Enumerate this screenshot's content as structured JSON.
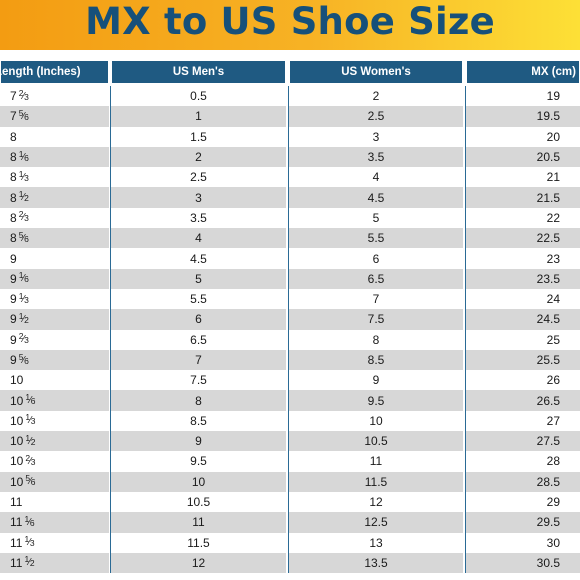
{
  "title": "MX to US Shoe Size",
  "columns": [
    "Length (Inches)",
    "US Men's",
    "US Women's",
    "MX (cm)"
  ],
  "rows": [
    {
      "length": "7 2/3",
      "men": "0.5",
      "women": "2",
      "mx": "19"
    },
    {
      "length": "7 5/6",
      "men": "1",
      "women": "2.5",
      "mx": "19.5"
    },
    {
      "length": "8",
      "men": "1.5",
      "women": "3",
      "mx": "20"
    },
    {
      "length": "8 1/6",
      "men": "2",
      "women": "3.5",
      "mx": "20.5"
    },
    {
      "length": "8 1/3",
      "men": "2.5",
      "women": "4",
      "mx": "21"
    },
    {
      "length": "8 1/2",
      "men": "3",
      "women": "4.5",
      "mx": "21.5"
    },
    {
      "length": "8 2/3",
      "men": "3.5",
      "women": "5",
      "mx": "22"
    },
    {
      "length": "8 5/6",
      "men": "4",
      "women": "5.5",
      "mx": "22.5"
    },
    {
      "length": "9",
      "men": "4.5",
      "women": "6",
      "mx": "23"
    },
    {
      "length": "9 1/6",
      "men": "5",
      "women": "6.5",
      "mx": "23.5"
    },
    {
      "length": "9 1/3",
      "men": "5.5",
      "women": "7",
      "mx": "24"
    },
    {
      "length": "9 1/2",
      "men": "6",
      "women": "7.5",
      "mx": "24.5"
    },
    {
      "length": "9 2/3",
      "men": "6.5",
      "women": "8",
      "mx": "25"
    },
    {
      "length": "9 5/6",
      "men": "7",
      "women": "8.5",
      "mx": "25.5"
    },
    {
      "length": "10",
      "men": "7.5",
      "women": "9",
      "mx": "26"
    },
    {
      "length": "10 1/6",
      "men": "8",
      "women": "9.5",
      "mx": "26.5"
    },
    {
      "length": "10 1/3",
      "men": "8.5",
      "women": "10",
      "mx": "27"
    },
    {
      "length": "10 1/2",
      "men": "9",
      "women": "10.5",
      "mx": "27.5"
    },
    {
      "length": "10 2/3",
      "men": "9.5",
      "women": "11",
      "mx": "28"
    },
    {
      "length": "10 5/6",
      "men": "10",
      "women": "11.5",
      "mx": "28.5"
    },
    {
      "length": "11",
      "men": "10.5",
      "women": "12",
      "mx": "29"
    },
    {
      "length": "11 1/6",
      "men": "11",
      "women": "12.5",
      "mx": "29.5"
    },
    {
      "length": "11 1/3",
      "men": "11.5",
      "women": "13",
      "mx": "30"
    },
    {
      "length": "11 1/2",
      "men": "12",
      "women": "13.5",
      "mx": "30.5"
    }
  ],
  "colors": {
    "title_text": "#16507a",
    "banner_start": "#f39c12",
    "banner_end": "#fde036",
    "header_bg": "#1f5a82",
    "stripe": "#d7d7d7"
  }
}
